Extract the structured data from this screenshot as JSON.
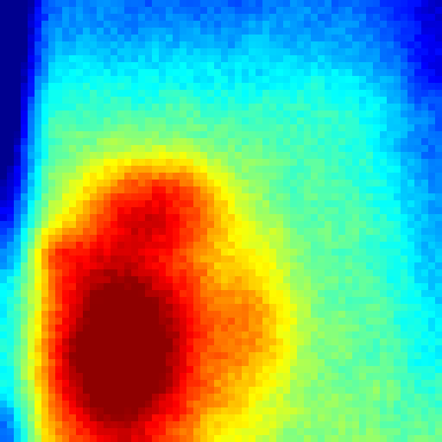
{
  "image": {
    "kind": "thermal-heatmap",
    "colormap": "jet",
    "colormap_stops": [
      "#00008f",
      "#0000ff",
      "#0080ff",
      "#00ffff",
      "#80ff80",
      "#ffff00",
      "#ff8000",
      "#ff0000",
      "#8f0000"
    ],
    "grid_cells": 64,
    "blur_passes": 2,
    "noise_amplitude": 0.06
  }
}
